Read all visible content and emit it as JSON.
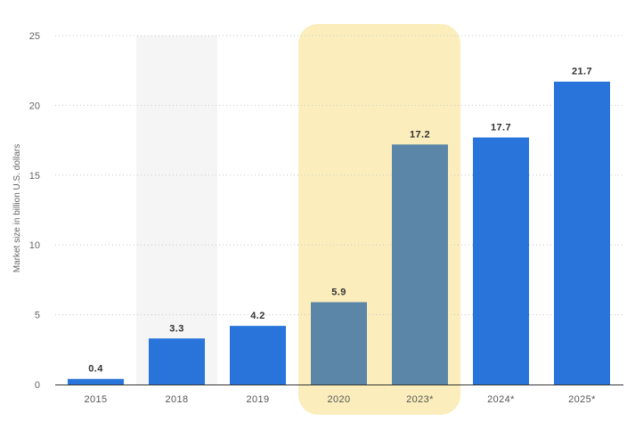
{
  "chart_data": {
    "type": "bar",
    "ylabel": "Market size in billion U.S. dollars",
    "xlabel": "",
    "ylim": [
      0,
      25
    ],
    "yticks": [
      "0",
      "5",
      "10",
      "15",
      "20",
      "25"
    ],
    "categories": [
      "2015",
      "2018",
      "2019",
      "2020",
      "2023*",
      "2024*",
      "2025*"
    ],
    "values": [
      0.4,
      3.3,
      4.2,
      5.9,
      17.2,
      17.7,
      21.7
    ],
    "value_labels": [
      "0.4",
      "3.3",
      "4.2",
      "5.9",
      "17.2",
      "17.7",
      "21.7"
    ],
    "highlighted_categories": [
      "2020",
      "2023*"
    ],
    "shaded_band_categories": [
      "2018"
    ],
    "grid": true,
    "grid_style": "dotted horizontal",
    "legend": "none"
  },
  "colors": {
    "bar": "#2874db",
    "bar_highlight": "#5b86a8",
    "highlight_box": "#fbeebc",
    "highlight_label": "#7a6a2a",
    "band": "#f5f5f5",
    "grid": "#c8c8c8",
    "axis": "#333333"
  }
}
